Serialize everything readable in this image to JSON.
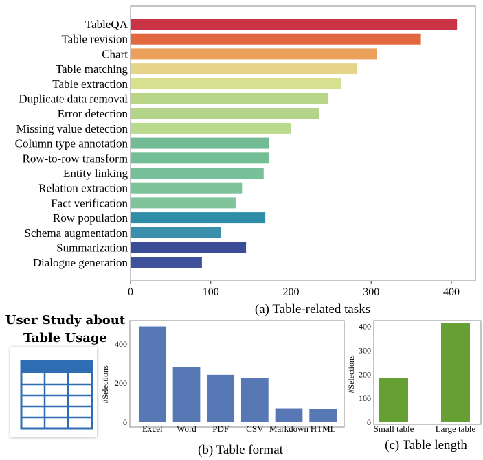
{
  "user_study": {
    "title_line1": "User Study about",
    "title_line2": "Table Usage",
    "icon": "table-icon"
  },
  "captions": {
    "a": "(a) Table-related tasks",
    "b": "(b) Table format",
    "c": "(c) Table length"
  },
  "chart_data": [
    {
      "id": "a",
      "type": "bar",
      "orientation": "horizontal",
      "categories": [
        "TableQA",
        "Table revision",
        "Chart",
        "Table matching",
        "Table extraction",
        "Duplicate data removal",
        "Error detection",
        "Missing value detection",
        "Column type annotation",
        "Row-to-row transform",
        "Entity linking",
        "Relation extraction",
        "Fact verification",
        "Row population",
        "Schema augmentation",
        "Summarization",
        "Dialogue generation"
      ],
      "values": [
        407,
        362,
        307,
        282,
        263,
        246,
        235,
        200,
        173,
        173,
        166,
        139,
        131,
        168,
        113,
        144,
        89
      ],
      "colors": [
        "#c93345",
        "#e2683f",
        "#eba15c",
        "#e6d48b",
        "#d7e08f",
        "#b9d587",
        "#b5d48b",
        "#b9d98d",
        "#72bb95",
        "#74be96",
        "#78c09a",
        "#7dc39a",
        "#80c49b",
        "#2e8ea8",
        "#3b8faa",
        "#3b4d96",
        "#3f519a"
      ],
      "xlim": [
        0,
        430
      ],
      "xticks": [
        0,
        100,
        200,
        300,
        400
      ],
      "xlabel": "",
      "ylabel": "",
      "grid": false
    },
    {
      "id": "b",
      "type": "bar",
      "categories": [
        "Excel",
        "Word",
        "PDF",
        "CSV",
        "Markdown",
        "HTML"
      ],
      "values": [
        490,
        283,
        243,
        228,
        72,
        68
      ],
      "color": "#5778b5",
      "ylim": [
        0,
        520
      ],
      "yticks": [
        0,
        200,
        400
      ],
      "ylabel": "#Selections",
      "xlabel": "",
      "grid": false
    },
    {
      "id": "c",
      "type": "bar",
      "categories": [
        "Small table",
        "Large table"
      ],
      "values": [
        186,
        415
      ],
      "color": "#66a034",
      "ylim": [
        0,
        425
      ],
      "yticks": [
        0,
        100,
        200,
        300,
        400
      ],
      "ylabel": "#Selections",
      "xlabel": "",
      "grid": false
    }
  ]
}
